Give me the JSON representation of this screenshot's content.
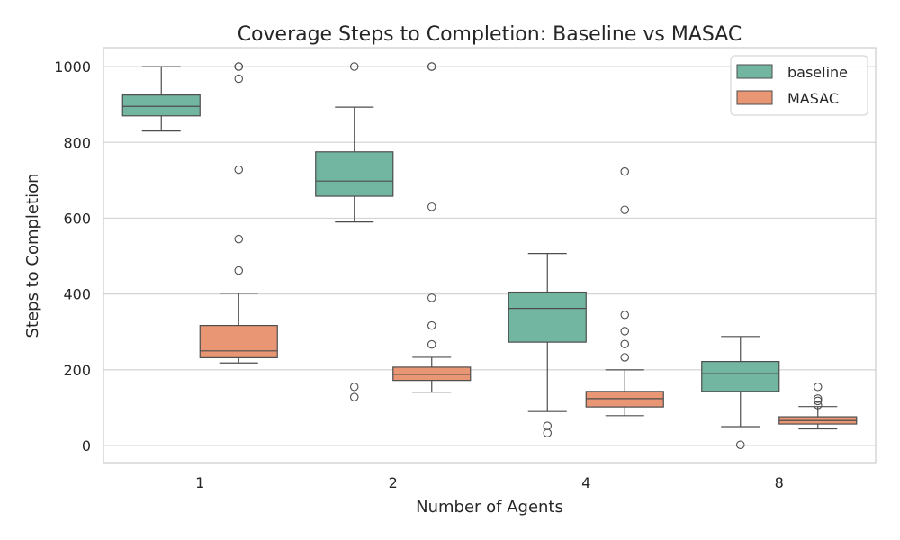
{
  "chart_data": {
    "type": "box",
    "title": "Coverage Steps to Completion: Baseline vs MASAC",
    "xlabel": "Number of Agents",
    "ylabel": "Steps to Completion",
    "categories": [
      "1",
      "2",
      "4",
      "8"
    ],
    "ylim": [
      -45,
      1050
    ],
    "yticks": [
      0,
      200,
      400,
      600,
      800,
      1000
    ],
    "grid": "horizontal",
    "legend_position": "top-right",
    "series": [
      {
        "name": "baseline",
        "color": "#72b6a1",
        "boxes": [
          {
            "whisker_low": 830,
            "q1": 870,
            "median": 895,
            "q3": 925,
            "whisker_high": 1000,
            "outliers": []
          },
          {
            "whisker_low": 590,
            "q1": 658,
            "median": 698,
            "q3": 775,
            "whisker_high": 893,
            "outliers": [
              1000,
              155,
              128
            ]
          },
          {
            "whisker_low": 90,
            "q1": 273,
            "median": 362,
            "q3": 405,
            "whisker_high": 507,
            "outliers": [
              52,
              33
            ]
          },
          {
            "whisker_low": 50,
            "q1": 143,
            "median": 190,
            "q3": 222,
            "whisker_high": 288,
            "outliers": [
              2
            ]
          }
        ]
      },
      {
        "name": "MASAC",
        "color": "#e99675",
        "boxes": [
          {
            "whisker_low": 218,
            "q1": 232,
            "median": 250,
            "q3": 317,
            "whisker_high": 402,
            "outliers": [
              1000,
              1000,
              968,
              728,
              545,
              462
            ]
          },
          {
            "whisker_low": 141,
            "q1": 172,
            "median": 188,
            "q3": 207,
            "whisker_high": 233,
            "outliers": [
              1000,
              1000,
              630,
              390,
              317,
              267
            ]
          },
          {
            "whisker_low": 79,
            "q1": 102,
            "median": 124,
            "q3": 143,
            "whisker_high": 200,
            "outliers": [
              723,
              622,
              345,
              302,
              268,
              233
            ]
          },
          {
            "whisker_low": 44,
            "q1": 57,
            "median": 66,
            "q3": 76,
            "whisker_high": 103,
            "outliers": [
              155,
              124,
              118,
              107
            ]
          }
        ]
      }
    ]
  }
}
